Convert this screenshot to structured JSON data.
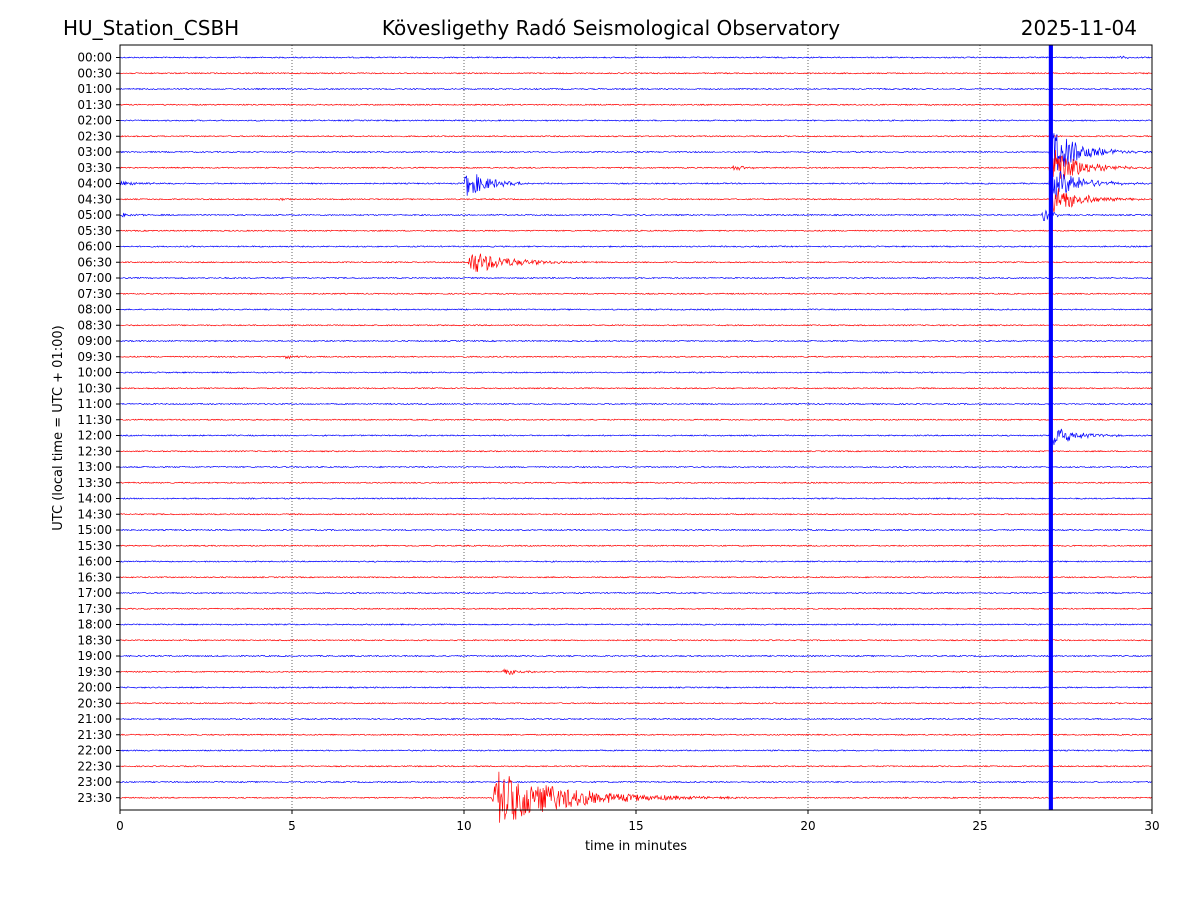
{
  "header": {
    "station": "HU_Station_CSBH",
    "observatory": "Kövesligethy Radó Seismological Observatory",
    "date": "2025-11-04"
  },
  "chart_data": {
    "type": "line",
    "title": "Kövesligethy Radó Seismological Observatory",
    "xlabel": "time in minutes",
    "ylabel": "UTC (local time = UTC + 01:00)",
    "xlim": [
      0,
      30
    ],
    "xticks": [
      "0",
      "5",
      "10",
      "15",
      "20",
      "25",
      "30"
    ],
    "grid": "vertical dotted lines at every 5 minutes",
    "colors": {
      "even_rows": "#0000ff",
      "odd_rows": "#ff0000"
    },
    "rows": [
      "00:00",
      "00:30",
      "01:00",
      "01:30",
      "02:00",
      "02:30",
      "03:00",
      "03:30",
      "04:00",
      "04:30",
      "05:00",
      "05:30",
      "06:00",
      "06:30",
      "07:00",
      "07:30",
      "08:00",
      "08:30",
      "09:00",
      "09:30",
      "10:00",
      "10:30",
      "11:00",
      "11:30",
      "12:00",
      "12:30",
      "13:00",
      "13:30",
      "14:00",
      "14:30",
      "15:00",
      "15:30",
      "16:00",
      "16:30",
      "17:00",
      "17:30",
      "18:00",
      "18:30",
      "19:00",
      "19:30",
      "20:00",
      "20:30",
      "21:00",
      "21:30",
      "22:00",
      "22:30",
      "23:00",
      "23:30"
    ],
    "events": [
      {
        "row": 0,
        "t": 29.0,
        "amp": 0.35,
        "dur": 1.0
      },
      {
        "row": 7,
        "t": 17.8,
        "amp": 0.45,
        "dur": 1.5
      },
      {
        "row": 8,
        "t": 10.0,
        "amp": 2.3,
        "dur": 2.5
      },
      {
        "row": 8,
        "t": 0.0,
        "amp": 0.4,
        "dur": 2.0
      },
      {
        "row": 9,
        "t": 4.6,
        "amp": 0.3,
        "dur": 0.8
      },
      {
        "row": 10,
        "t": 0.0,
        "amp": 0.4,
        "dur": 1.5
      },
      {
        "row": 13,
        "t": 10.1,
        "amp": 2.0,
        "dur": 4.0
      },
      {
        "row": 19,
        "t": 4.8,
        "amp": 0.4,
        "dur": 1.0
      },
      {
        "row": 39,
        "t": 11.1,
        "amp": 0.6,
        "dur": 2.0
      },
      {
        "row": 47,
        "t": 10.8,
        "amp": 4.5,
        "dur": 7.5
      },
      {
        "row": 6,
        "t": 27.0,
        "amp": 4.0,
        "dur": 3.0
      },
      {
        "row": 7,
        "t": 27.0,
        "amp": 3.5,
        "dur": 3.0
      },
      {
        "row": 8,
        "t": 27.0,
        "amp": 2.8,
        "dur": 3.0
      },
      {
        "row": 9,
        "t": 27.0,
        "amp": 2.5,
        "dur": 3.0
      },
      {
        "row": 10,
        "t": 26.8,
        "amp": 1.2,
        "dur": 1.0
      },
      {
        "row": 24,
        "t": 27.0,
        "amp": 2.0,
        "dur": 2.5
      }
    ],
    "vertical_band": {
      "t_start": 27.0,
      "t_end": 27.12,
      "row_start": 0,
      "row_end": 47
    }
  }
}
